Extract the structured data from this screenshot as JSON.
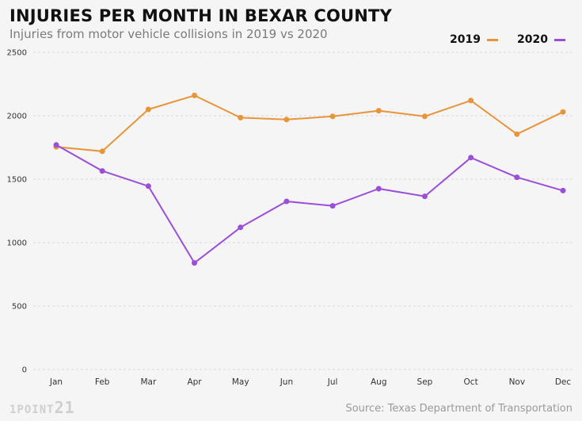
{
  "title": "INJURIES PER MONTH IN BEXAR COUNTY",
  "subtitle": "Injuries from motor vehicle collisions in 2019 vs 2020",
  "source": "Source: Texas Department of  Transportation",
  "logo": {
    "prefix": "1POINT",
    "suffix": "21"
  },
  "colors": {
    "series_2019": "#e8953a",
    "series_2020": "#9b4fd8",
    "grid": "#d9d9d9"
  },
  "chart_data": {
    "type": "line",
    "categories": [
      "Jan",
      "Feb",
      "Mar",
      "Apr",
      "May",
      "Jun",
      "Jul",
      "Aug",
      "Sep",
      "Oct",
      "Nov",
      "Dec"
    ],
    "series": [
      {
        "name": "2019",
        "values": [
          1755,
          1720,
          2050,
          2160,
          1985,
          1970,
          1995,
          2040,
          1995,
          2120,
          1855,
          2030
        ]
      },
      {
        "name": "2020",
        "values": [
          1770,
          1565,
          1445,
          840,
          1120,
          1325,
          1290,
          1425,
          1365,
          1670,
          1515,
          1410
        ]
      }
    ],
    "yticks": [
      0,
      500,
      1000,
      1500,
      2000,
      2500
    ],
    "ylim": [
      0,
      2500
    ],
    "grid": true,
    "legend": "top-right"
  }
}
